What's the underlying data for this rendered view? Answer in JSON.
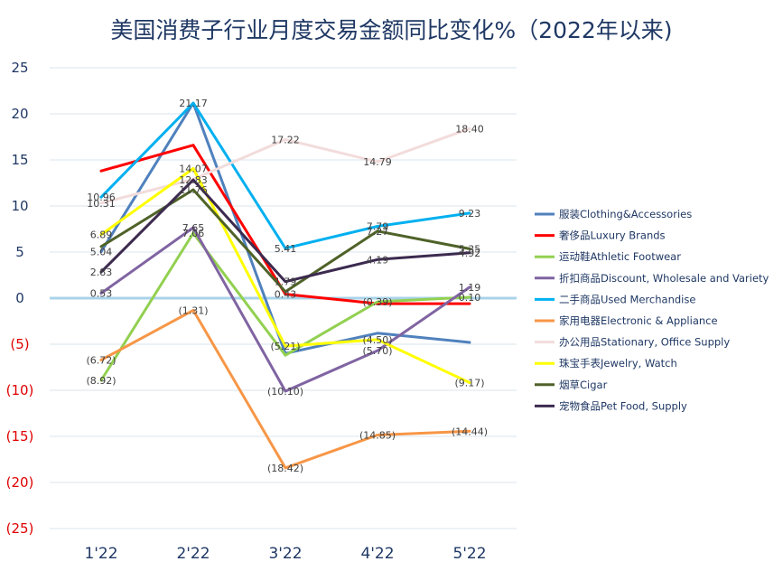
{
  "chart_data": {
    "type": "line",
    "title": "美国消费子行业月度交易金额同比变化%（2022年以来)",
    "categories": [
      "1'22",
      "2'22",
      "3'22",
      "4'22",
      "5'22"
    ],
    "ylim": [
      -25,
      25
    ],
    "yticks": [
      25,
      20,
      15,
      10,
      5,
      0,
      -5,
      -10,
      -15,
      -20,
      -25
    ],
    "ytick_labels": [
      "25",
      "20",
      "15",
      "10",
      "5",
      "0",
      "(5)",
      "(10)",
      "(15)",
      "(20)",
      "(25)"
    ],
    "grid": true,
    "legend_position": "right",
    "colors": {
      "positive_tick": "#1F3864",
      "negative_tick": "#E00000",
      "zero_line": "#A9D3E8",
      "grid": "#D9E5EE"
    },
    "series": [
      {
        "name": "服装Clothing&Accessories",
        "color": "#4F81BD",
        "values": [
          5.04,
          21.17,
          -6.0,
          -3.8,
          -4.8
        ],
        "labels": [
          "5.04",
          "21.17",
          "",
          "",
          ""
        ]
      },
      {
        "name": "奢侈品Luxury Brands",
        "color": "#FF0000",
        "values": [
          13.8,
          16.6,
          0.43,
          -0.6,
          -0.6
        ],
        "labels": [
          "",
          "",
          "0.43",
          "",
          ""
        ]
      },
      {
        "name": "运动鞋Athletic Footwear",
        "color": "#92D050",
        "values": [
          -8.92,
          7.06,
          -6.2,
          -0.39,
          0.1
        ],
        "labels": [
          "(8.92)",
          "7.06",
          "",
          "(0.39)",
          "0.10"
        ]
      },
      {
        "name": "折扣商品Discount, Wholesale and Variety",
        "color": "#8064A2",
        "values": [
          0.53,
          7.65,
          -10.1,
          -5.7,
          1.19
        ],
        "labels": [
          "0.53",
          "7.65",
          "(10.10)",
          "(5.70)",
          "1.19"
        ]
      },
      {
        "name": "二手商品Used Merchandise",
        "color": "#00B0F0",
        "values": [
          10.96,
          21.17,
          5.41,
          7.79,
          9.23
        ],
        "labels": [
          "10.96",
          "",
          "5.41",
          "7.79",
          "9.23"
        ]
      },
      {
        "name": "家用电器Electronic & Appliance",
        "color": "#F79646",
        "values": [
          -6.72,
          -1.31,
          -18.42,
          -14.85,
          -14.44
        ],
        "labels": [
          "(6.72)",
          "(1.31)",
          "(18.42)",
          "(14.85)",
          "(14.44)"
        ]
      },
      {
        "name": "办公用品Stationary, Office Supply",
        "color": "#F2DCDB",
        "values": [
          10.31,
          12.9,
          17.22,
          14.79,
          18.4
        ],
        "labels": [
          "10.31",
          "",
          "17.22",
          "14.79",
          "18.40"
        ]
      },
      {
        "name": "珠宝手表Jewelry, Watch",
        "color": "#FFFF00",
        "values": [
          6.89,
          14.07,
          -5.21,
          -4.5,
          -9.17
        ],
        "labels": [
          "6.89",
          "14.07",
          "(5.21)",
          "(4.50)",
          "(9.17)"
        ]
      },
      {
        "name": "烟草Cigar",
        "color": "#4F6228",
        "values": [
          5.6,
          11.76,
          0.7,
          7.27,
          5.35
        ],
        "labels": [
          "",
          "11.76",
          "",
          "7.27",
          "5.35"
        ]
      },
      {
        "name": "宠物食品Pet Food, Supply",
        "color": "#3C2A4F",
        "values": [
          2.83,
          12.83,
          1.79,
          4.19,
          4.92
        ],
        "labels": [
          "2.83",
          "12.83",
          "1.79",
          "4.19",
          "4.92"
        ]
      }
    ]
  }
}
